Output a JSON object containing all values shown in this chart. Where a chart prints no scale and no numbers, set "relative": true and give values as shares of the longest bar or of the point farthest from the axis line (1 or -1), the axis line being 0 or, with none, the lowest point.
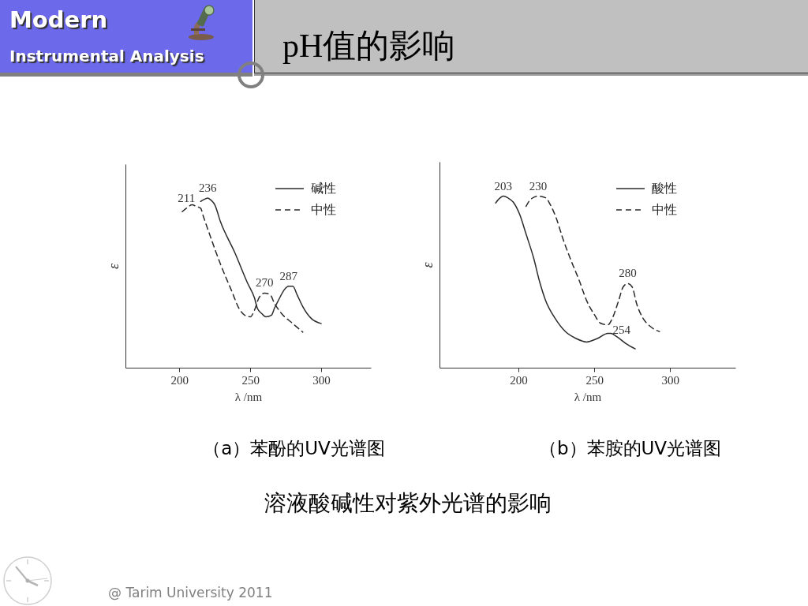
{
  "chart_data": [
    {
      "type": "line",
      "title": "（a）苯酚的UV光谱图",
      "xlabel": "λ /nm",
      "ylabel": "ε",
      "relative": true,
      "xlim": [
        162,
        335
      ],
      "xticks": [
        200,
        250,
        300
      ],
      "legend": "top right",
      "series": [
        {
          "name": "碱性",
          "color": "#2b2b2b",
          "line_style": "solid",
          "x": [
            215,
            217,
            220,
            222,
            225,
            229,
            239,
            248,
            253,
            255,
            258,
            261,
            265,
            267,
            270,
            274,
            277,
            280,
            283,
            287,
            293,
            300
          ],
          "values": [
            0.98,
            0.99,
            1.0,
            0.99,
            0.96,
            0.86,
            0.68,
            0.5,
            0.41,
            0.35,
            0.32,
            0.3,
            0.31,
            0.35,
            0.4,
            0.46,
            0.48,
            0.48,
            0.43,
            0.36,
            0.29,
            0.26
          ]
        },
        {
          "name": "中性",
          "color": "#2b2b2b",
          "line_style": "dashed",
          "x": [
            202,
            205,
            209,
            212,
            215,
            217,
            222,
            229,
            237,
            242,
            246,
            250,
            253,
            256,
            260,
            264,
            267,
            272,
            280,
            287
          ],
          "values": [
            0.92,
            0.94,
            0.96,
            0.95,
            0.94,
            0.89,
            0.77,
            0.61,
            0.45,
            0.35,
            0.31,
            0.3,
            0.34,
            0.41,
            0.44,
            0.43,
            0.38,
            0.32,
            0.26,
            0.21
          ]
        }
      ],
      "annotations": [
        {
          "text": "211",
          "x": 205,
          "y": 0.94
        },
        {
          "text": "236",
          "x": 220,
          "y": 1.0
        },
        {
          "text": "270",
          "x": 260,
          "y": 0.44
        },
        {
          "text": "287",
          "x": 277,
          "y": 0.48
        }
      ]
    },
    {
      "type": "line",
      "title": "（b）苯胺的UV光谱图",
      "xlabel": "λ /nm",
      "ylabel": "ε",
      "relative": true,
      "xlim": [
        148,
        343
      ],
      "xticks": [
        200,
        250,
        300
      ],
      "legend": "top right",
      "series": [
        {
          "name": "酸性",
          "color": "#2b2b2b",
          "line_style": "solid",
          "x": [
            185,
            188,
            190,
            193,
            197,
            201,
            205,
            210,
            214,
            218,
            224,
            231,
            238,
            245,
            252,
            259,
            261,
            265,
            271,
            277
          ],
          "values": [
            0.96,
            0.99,
            1.0,
            0.99,
            0.96,
            0.89,
            0.78,
            0.64,
            0.5,
            0.39,
            0.29,
            0.21,
            0.17,
            0.15,
            0.17,
            0.2,
            0.2,
            0.18,
            0.14,
            0.11
          ]
        },
        {
          "name": "中性",
          "color": "#2b2b2b",
          "line_style": "dashed",
          "x": [
            205,
            208,
            213,
            218,
            221,
            225,
            229,
            234,
            240,
            245,
            250,
            254,
            259,
            262,
            266,
            269,
            272,
            275,
            278,
            282,
            287,
            293
          ],
          "values": [
            0.94,
            0.98,
            1.0,
            0.99,
            0.95,
            0.87,
            0.76,
            0.64,
            0.51,
            0.39,
            0.31,
            0.26,
            0.25,
            0.29,
            0.39,
            0.47,
            0.49,
            0.47,
            0.37,
            0.29,
            0.24,
            0.21
          ]
        }
      ],
      "annotations": [
        {
          "text": "203",
          "x": 190,
          "y": 1.0
        },
        {
          "text": "230",
          "x": 213,
          "y": 1.0
        },
        {
          "text": "280",
          "x": 272,
          "y": 0.49
        },
        {
          "text": "254",
          "x": 268,
          "y": 0.16
        }
      ]
    },
    {
      "type": "other",
      "title": "pH值的影响",
      "annotations": [
        "Modern",
        "Instrumental Analysis",
        "溶液酸碱性对紫外光谱的影响",
        "@ Tarim University 2011"
      ]
    }
  ]
}
